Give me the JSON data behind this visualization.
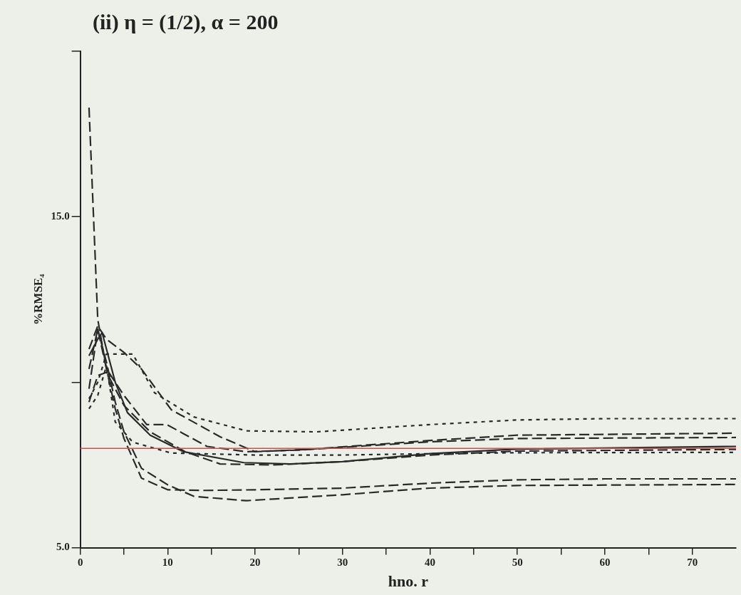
{
  "chart_data": {
    "type": "line",
    "title": "(ii) η = (1/2), α = 200",
    "xlabel": "hno. r",
    "ylabel": "%RMSE₄",
    "xlim": [
      0,
      75
    ],
    "ylim": [
      5,
      20
    ],
    "xticks": [
      0,
      {
        "value": 5,
        "label": null
      },
      10,
      {
        "value": 15,
        "label": null
      },
      20,
      {
        "value": 25,
        "label": null
      },
      30,
      {
        "value": 35,
        "label": null
      },
      40,
      {
        "value": 45,
        "label": null
      },
      50,
      {
        "value": 55,
        "label": null
      },
      60,
      {
        "value": 65,
        "label": null
      },
      70
    ],
    "yticks": [
      {
        "value": 5,
        "label": "5.0"
      },
      {
        "value": 10,
        "label": null
      },
      {
        "value": 15,
        "label": "15.0"
      },
      {
        "value": 20,
        "label": null
      }
    ],
    "grid": false,
    "legend": false,
    "marker": "none",
    "ref_lines": [
      {
        "axis": "y",
        "value": 8,
        "color": "#e8463c",
        "line_style": "solid"
      }
    ],
    "series": [
      {
        "color": "#2a2a2a",
        "line_style": "dashed",
        "x": [
          1,
          2,
          3,
          4,
          5,
          7,
          10,
          14,
          20,
          30,
          40,
          50,
          60,
          75
        ],
        "values": [
          18.3,
          11.9,
          10.4,
          9.2,
          8.3,
          7.1,
          6.75,
          6.73,
          6.75,
          6.8,
          6.95,
          7.05,
          7.08,
          7.08
        ]
      },
      {
        "color": "#2a2a2a",
        "line_style": "dashed",
        "x": [
          1,
          2,
          3,
          4,
          5,
          7,
          10,
          13,
          19,
          30,
          40,
          50,
          75
        ],
        "values": [
          9.8,
          11.6,
          10.6,
          9.4,
          8.5,
          7.4,
          6.9,
          6.55,
          6.42,
          6.6,
          6.8,
          6.88,
          6.91
        ]
      },
      {
        "color": "#2a2a2a",
        "line_style": "dotted",
        "x": [
          1,
          2,
          3,
          6,
          8.5,
          13,
          19,
          27,
          40,
          50,
          60,
          75
        ],
        "values": [
          9.5,
          10,
          10.85,
          10.85,
          9.68,
          8.95,
          8.53,
          8.5,
          8.72,
          8.86,
          8.9,
          8.9
        ]
      },
      {
        "color": "#2a2a2a",
        "line_style": "dashed",
        "x": [
          1,
          2,
          3,
          5,
          7,
          10.4,
          16,
          20,
          26,
          40,
          50,
          75
        ],
        "values": [
          11,
          11.7,
          11.3,
          10.9,
          10.4,
          9.17,
          8.35,
          7.9,
          7.97,
          8.24,
          8.4,
          8.46
        ]
      },
      {
        "color": "#2a2a2a",
        "line_style": "dashed",
        "x": [
          1,
          2,
          3,
          5,
          7.6,
          9.9,
          14.5,
          19,
          25,
          40,
          50,
          75
        ],
        "values": [
          10.4,
          11.6,
          10.4,
          9.6,
          8.72,
          8.72,
          8.06,
          7.9,
          7.95,
          8.2,
          8.3,
          8.33
        ]
      },
      {
        "color": "#2a2a2a",
        "line_style": "solid",
        "x": [
          1,
          2,
          2.5,
          4,
          5.4,
          8,
          11.8,
          18.7,
          24,
          30,
          40,
          50,
          75
        ],
        "values": [
          10.8,
          11.3,
          11.5,
          10,
          9.08,
          8.4,
          7.9,
          7.57,
          7.53,
          7.6,
          7.84,
          7.98,
          8.06
        ]
      },
      {
        "color": "#2a2a2a",
        "line_style": "dashed",
        "x": [
          1,
          2,
          3,
          5,
          8,
          12,
          16,
          22,
          30,
          40,
          50,
          75
        ],
        "values": [
          9.4,
          10.2,
          10.3,
          9.3,
          8.5,
          7.9,
          7.53,
          7.5,
          7.6,
          7.8,
          7.92,
          7.97
        ]
      },
      {
        "color": "#2a2a2a",
        "line_style": "dotted",
        "x": [
          1,
          2,
          3,
          4,
          6,
          10.4,
          20,
          30,
          40,
          50,
          75
        ],
        "values": [
          9.2,
          9.6,
          10.5,
          8.8,
          8.19,
          7.86,
          7.8,
          7.8,
          7.84,
          7.87,
          7.88
        ]
      }
    ]
  }
}
